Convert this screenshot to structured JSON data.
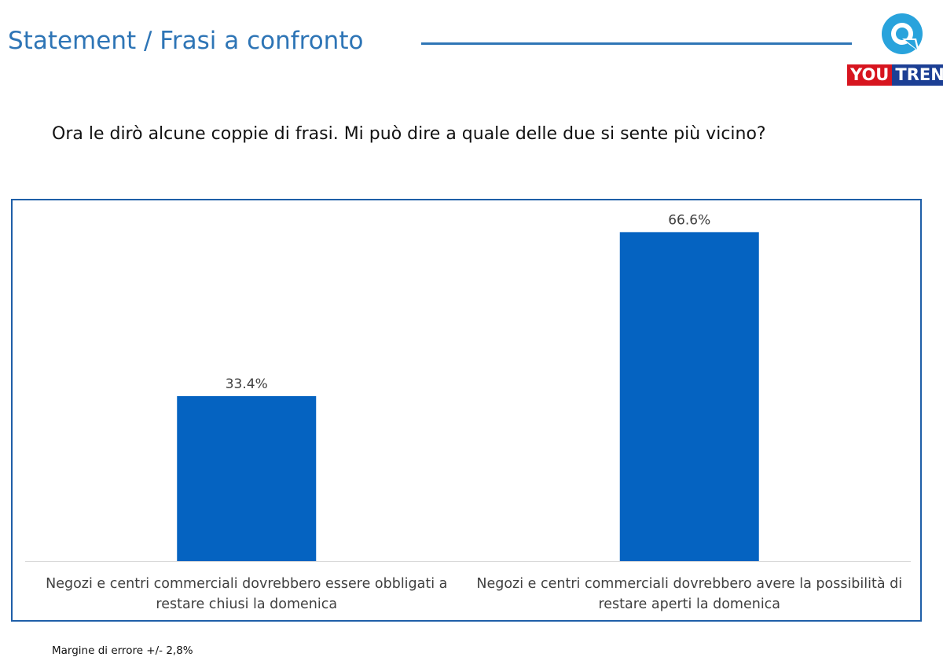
{
  "header": {
    "title": "Statement / Frasi a confronto",
    "accent_color": "#2e75b6"
  },
  "logo": {
    "you": "YOU",
    "trend": "TREND",
    "colors": {
      "you_bg": "#d7151f",
      "trend_bg": "#1c3f94",
      "q": "#29a3dc"
    }
  },
  "question": "Ora le dirò alcune coppie di frasi. Mi può dire a quale delle due si sente più vicino?",
  "chart_data": {
    "type": "bar",
    "categories": [
      "Negozi e centri commerciali dovrebbero essere obbligati a restare chiusi la domenica",
      "Negozi e centri commerciali dovrebbero avere la possibilità di restare aperti la domenica"
    ],
    "values": [
      33.4,
      66.6
    ],
    "value_labels": [
      "33.4%",
      "66.6%"
    ],
    "ylim": [
      0,
      70
    ],
    "grid": false,
    "bar_color": "#0563c1",
    "frame_color": "#1f5fa8"
  },
  "footnote": "Margine di errore +/- 2,8%"
}
